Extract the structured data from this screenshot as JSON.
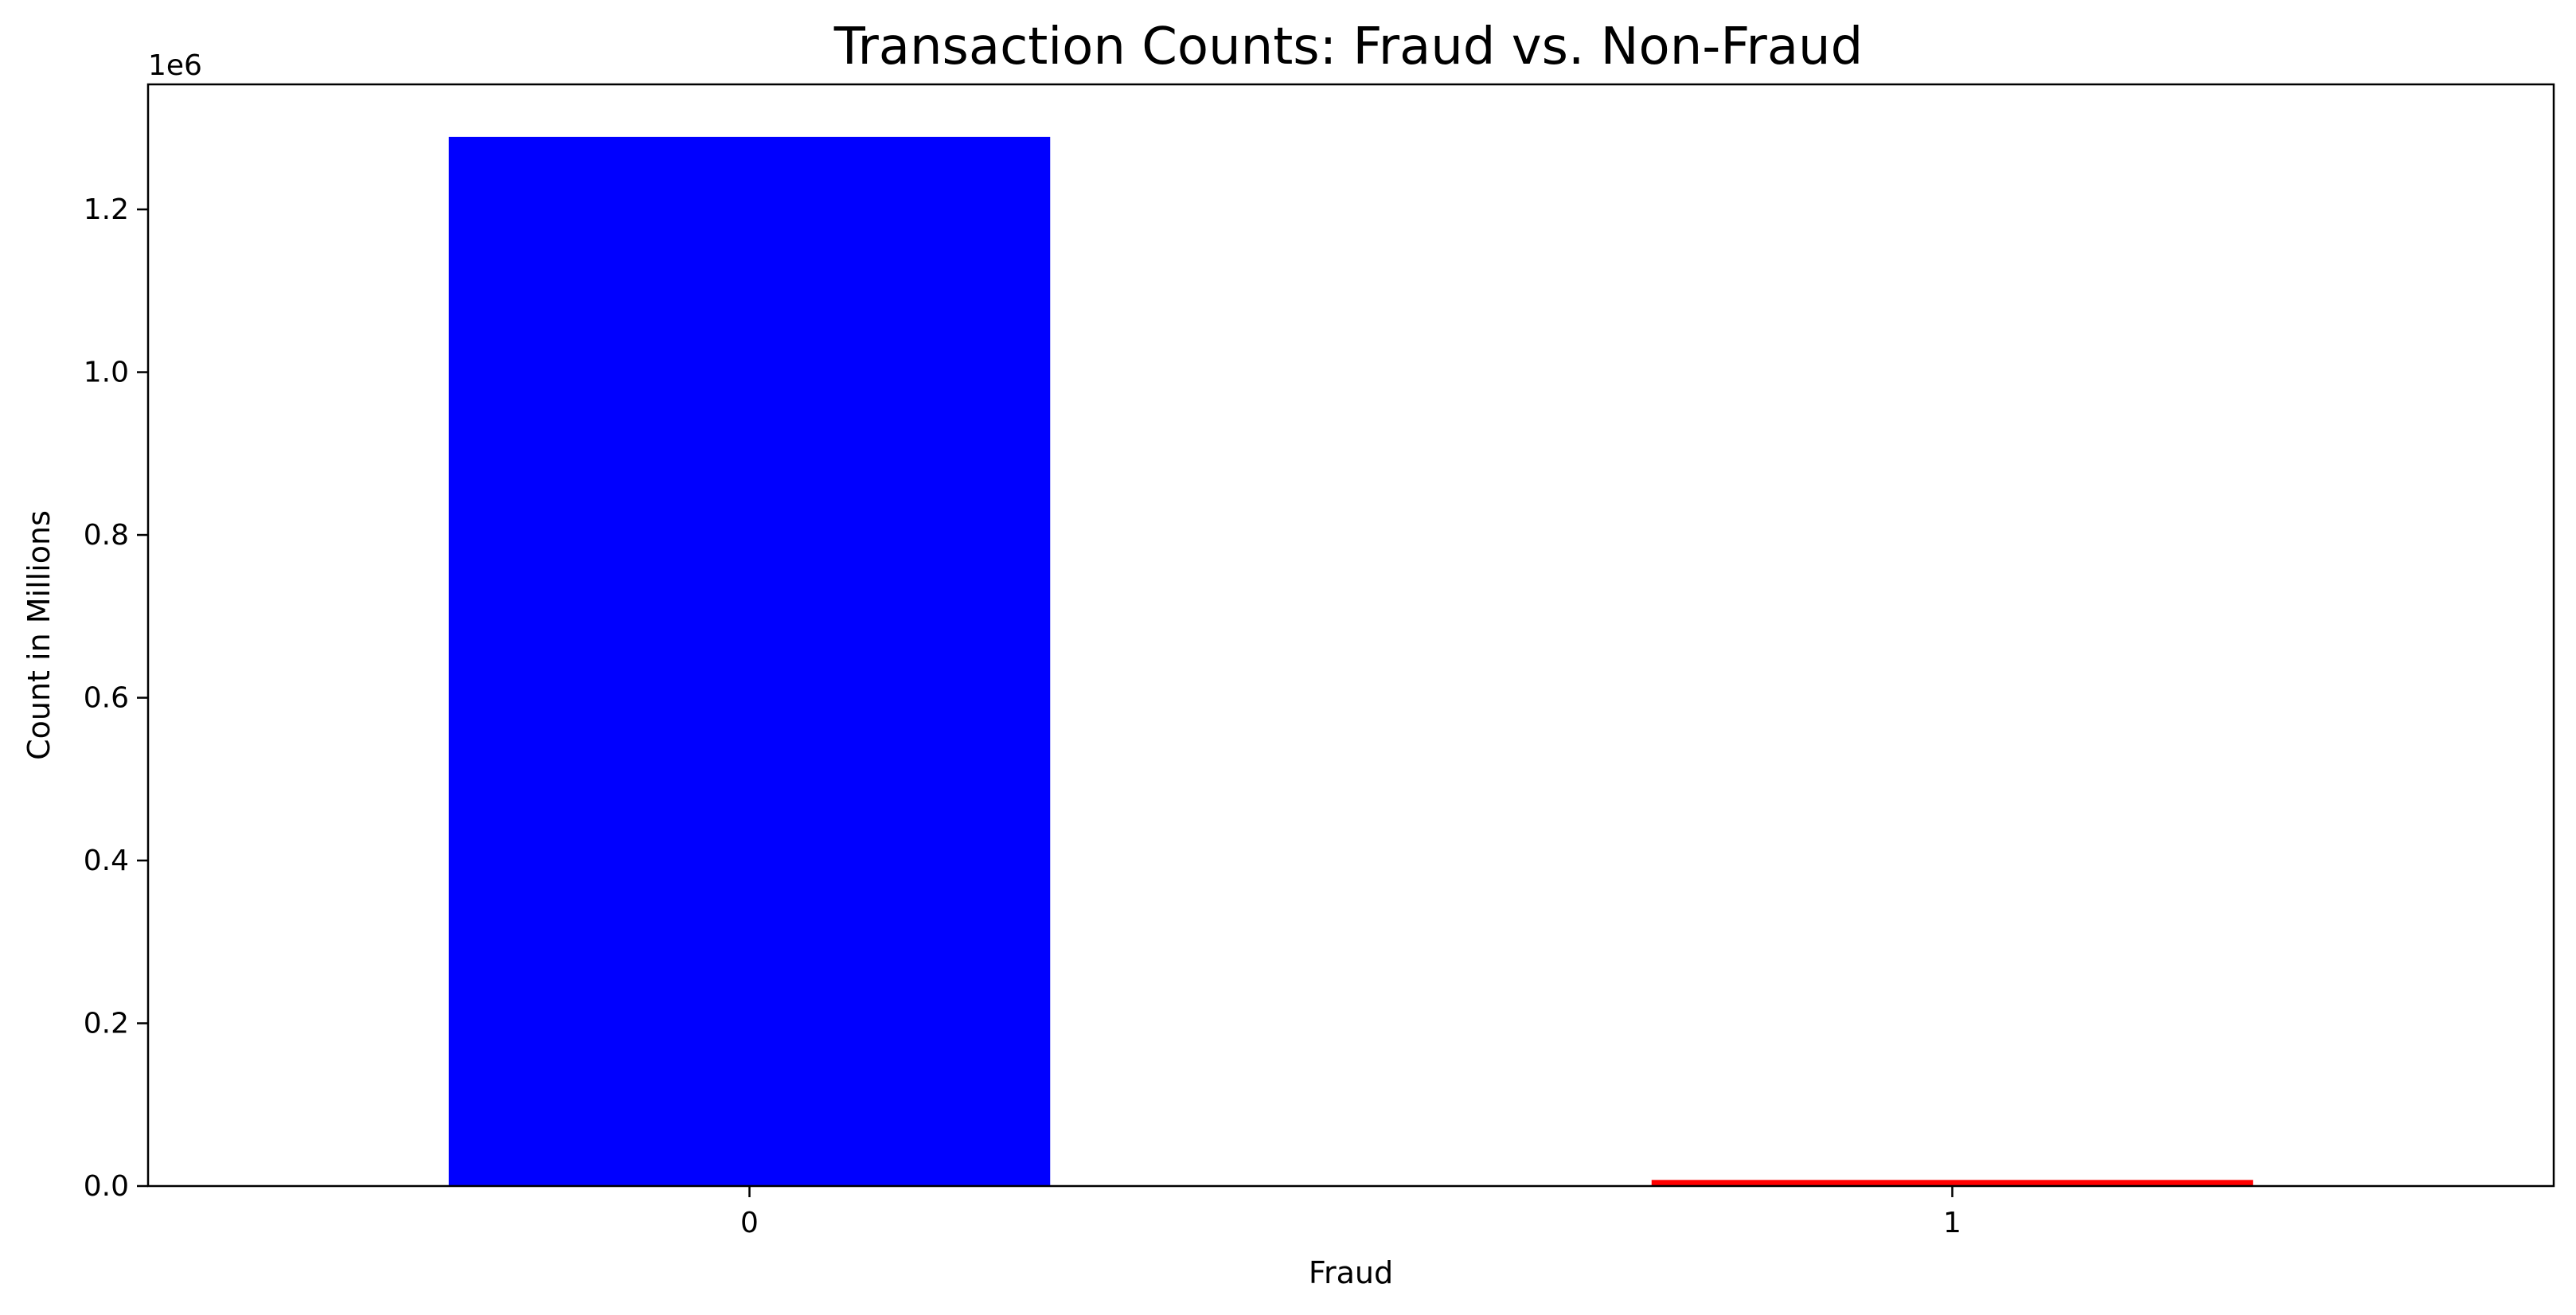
{
  "chart_data": {
    "type": "bar",
    "title": "Transaction Counts: Fraud vs. Non-Fraud",
    "xlabel": "Fraud",
    "ylabel": "Count in Millions",
    "y_offset_label": "1e6",
    "categories": [
      "0",
      "1"
    ],
    "values": [
      1289169,
      7506
    ],
    "colors": [
      "#0000ff",
      "#ff0000"
    ],
    "ylim": [
      0,
      1353627
    ],
    "yticks": [
      0,
      200000,
      400000,
      600000,
      800000,
      1000000,
      1200000
    ],
    "ytick_labels": [
      "0.0",
      "0.2",
      "0.4",
      "0.6",
      "0.8",
      "1.0",
      "1.2"
    ],
    "grid": false,
    "legend": "none"
  }
}
